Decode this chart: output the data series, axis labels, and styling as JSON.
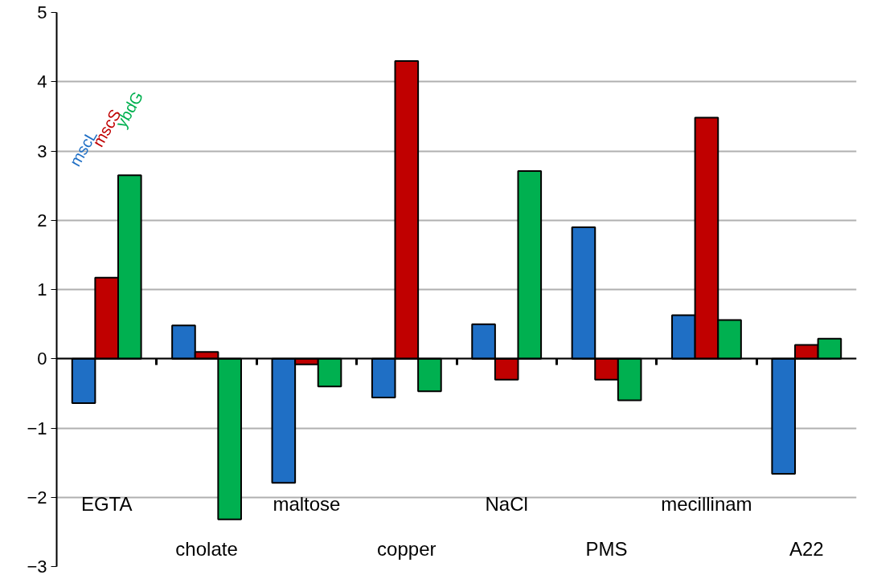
{
  "chart_data": {
    "type": "bar",
    "categories": [
      "EGTA",
      "cholate",
      "maltose",
      "copper",
      "NaCl",
      "PMS",
      "mecillinam",
      "A22"
    ],
    "series": [
      {
        "name": "mscL",
        "color": "#1f6fc5",
        "values": [
          -0.64,
          0.48,
          -1.79,
          -0.56,
          0.5,
          1.9,
          0.63,
          -1.66
        ]
      },
      {
        "name": "mscS",
        "color": "#c00000",
        "values": [
          1.17,
          0.1,
          -0.08,
          4.3,
          -0.3,
          -0.3,
          3.48,
          0.2
        ]
      },
      {
        "name": "ybdG",
        "color": "#00b050",
        "values": [
          2.65,
          -2.32,
          -0.4,
          -0.47,
          2.71,
          -0.6,
          0.56,
          0.29
        ]
      }
    ],
    "ylim": [
      -3,
      5
    ],
    "yticks": [
      -3,
      -2,
      -1,
      0,
      1,
      2,
      3,
      4,
      5
    ],
    "grid": "y",
    "legend": false
  }
}
